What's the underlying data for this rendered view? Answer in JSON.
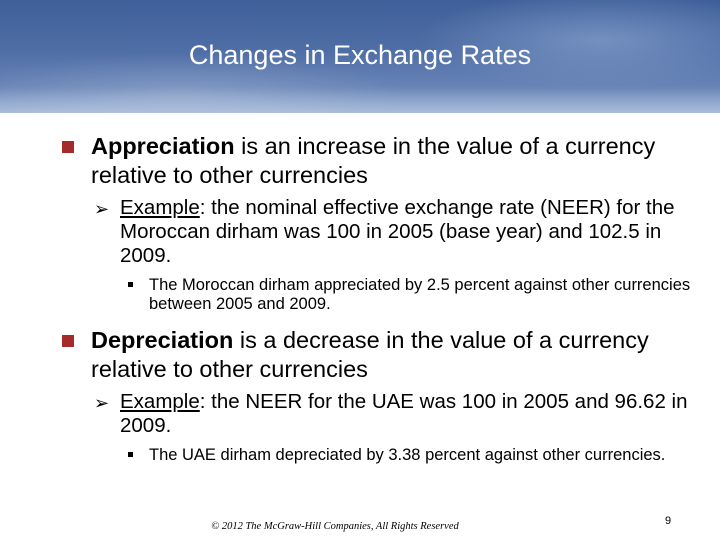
{
  "slide": {
    "title": "Changes in Exchange Rates",
    "bullets": [
      {
        "term": "Appreciation",
        "text": " is an increase in the value of a currency relative to other currencies",
        "example_label": "Example",
        "example_text": ": the nominal effective exchange rate (NEER) for the Moroccan dirham was 100 in 2005 (base year) and 102.5 in 2009.",
        "detail": "The Moroccan dirham appreciated by 2.5 percent against other currencies between 2005 and 2009."
      },
      {
        "term": "Depreciation",
        "text": " is a  decrease in the value of a currency relative to other currencies",
        "example_label": "Example",
        "example_text": ": the NEER for the UAE was 100 in 2005 and 96.62 in 2009.",
        "detail": "The UAE dirham depreciated by 3.38 percent against other currencies."
      }
    ],
    "footer": "© 2012 The McGraw-Hill Companies, All Rights Reserved",
    "page_number": "9",
    "colors": {
      "header": "#4f6ea6",
      "bullet_marker": "#a52a2a"
    },
    "icons": {
      "level1": "square-bullet-icon",
      "level2": "arrow-bullet-icon",
      "level3": "small-square-bullet-icon"
    }
  }
}
